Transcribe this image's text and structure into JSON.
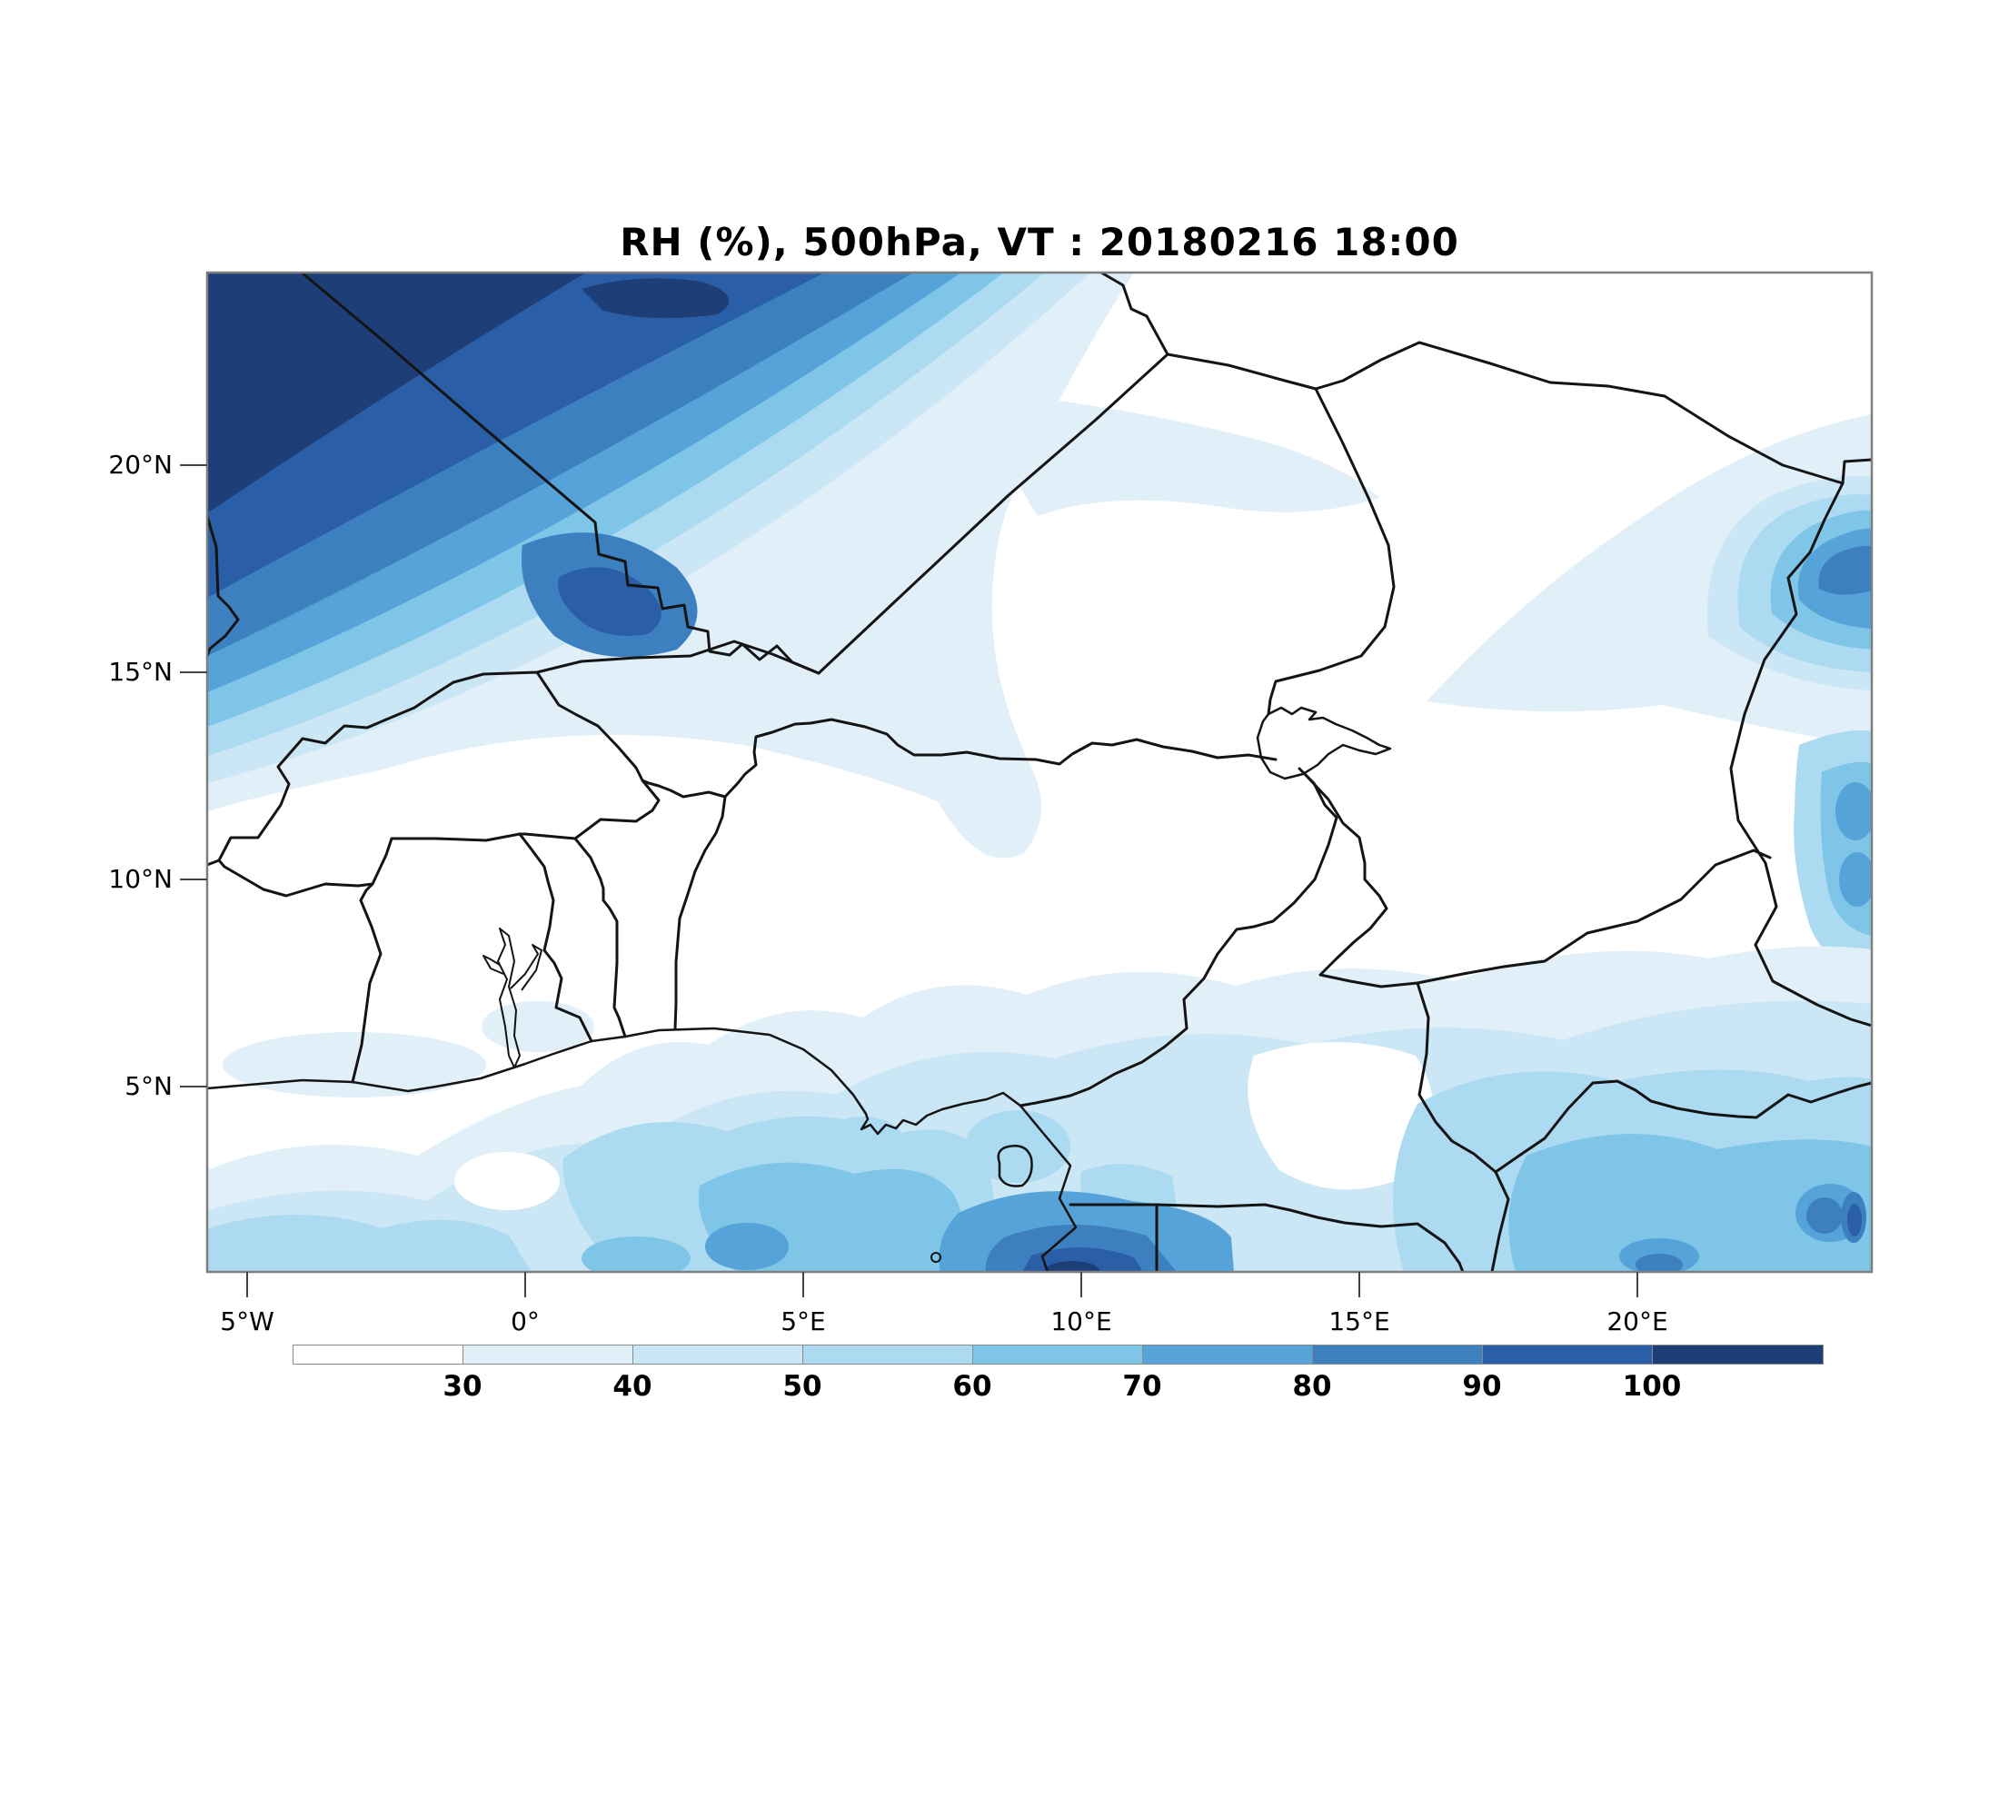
{
  "title": "RH (%), 500hPa, VT : 20180216  18:00",
  "axes": {
    "y_ticks": [
      {
        "label": "20°N",
        "lat": 20
      },
      {
        "label": "15°N",
        "lat": 15
      },
      {
        "label": "10°N",
        "lat": 10
      },
      {
        "label": "5°N",
        "lat": 5
      }
    ],
    "x_ticks": [
      {
        "label": "5°W",
        "lon": -5
      },
      {
        "label": "0°",
        "lon": 0
      },
      {
        "label": "5°E",
        "lon": 5
      },
      {
        "label": "10°E",
        "lon": 10
      },
      {
        "label": "15°E",
        "lon": 15
      },
      {
        "label": "20°E",
        "lon": 20
      }
    ]
  },
  "colorbar": {
    "boundary_labels": [
      "30",
      "40",
      "50",
      "60",
      "70",
      "80",
      "90",
      "100"
    ],
    "segment_colors": [
      "#ffffff",
      "#e1eff8",
      "#cbe6f5",
      "#abdaf1",
      "#7ec5e8",
      "#55a3d8",
      "#3c80c0",
      "#2a5ea6",
      "#1e3e78"
    ]
  },
  "chart_data": {
    "type": "heatmap",
    "subtype": "filled-contour-map",
    "title": "RH (%), 500hPa, VT : 20180216  18:00",
    "variable": "Relative humidity",
    "units": "%",
    "pressure_level": "500 hPa",
    "valid_time": "20180216 18:00",
    "lon_range": [
      -5.7,
      24.2
    ],
    "lat_range": [
      0.55,
      24.65
    ],
    "x_tick_labels": [
      "5°W",
      "0°",
      "5°E",
      "10°E",
      "15°E",
      "20°E"
    ],
    "y_tick_labels": [
      "20°N",
      "15°N",
      "10°N",
      "5°N"
    ],
    "contour_levels": [
      30,
      40,
      50,
      60,
      70,
      80,
      90,
      100
    ],
    "palette": [
      {
        "range": "< 30",
        "color": "#ffffff"
      },
      {
        "range": "30-40",
        "color": "#e1eff8"
      },
      {
        "range": "40-50",
        "color": "#cbe6f5"
      },
      {
        "range": "50-60",
        "color": "#abdaf1"
      },
      {
        "range": "60-70",
        "color": "#7ec5e8"
      },
      {
        "range": "70-80",
        "color": "#55a3d8"
      },
      {
        "range": "80-90",
        "color": "#3c80c0"
      },
      {
        "range": "90-100",
        "color": "#2a5ea6"
      },
      {
        "range": "> 100",
        "color": "#1e3e78"
      }
    ],
    "legend_position": "bottom",
    "grid": false,
    "features": [
      {
        "region": "Northwest corner (northern Mali / Algeria)",
        "approx_lon": -5,
        "approx_lat": 23,
        "rh": "90 to >100, banded gradient decreasing southeastward to <30 by ~15N"
      },
      {
        "region": "Dark tongue on Mali-Algeria border",
        "approx_lon": 1.5,
        "approx_lat": 17.5,
        "rh": "90-100 finger"
      },
      {
        "region": "Pale band across central Niger",
        "approx_lon": 8,
        "approx_lat": 15,
        "rh": "30-40"
      },
      {
        "region": "Northeast Chad near right edge",
        "approx_lon": 23.5,
        "approx_lat": 17.5,
        "rh": "80-90 core in 30-60 halo"
      },
      {
        "region": "Right edge, eastern Chad",
        "approx_lon": 23.8,
        "approx_lat": 11.5,
        "rh": "60-80 patches"
      },
      {
        "region": "Sahel / central belt",
        "approx_lon": 5,
        "approx_lat": 12,
        "rh": "< 30 (dry)"
      },
      {
        "region": "Gulf of Guinea coast band",
        "approx_lon": 3,
        "approx_lat": 3.5,
        "rh": "30-60 widespread"
      },
      {
        "region": "South of Bight of Biafra (Equatorial Guinea / Gabon coast)",
        "approx_lon": 10.5,
        "approx_lat": 1,
        "rh": "80 to >100 maximum at bottom edge"
      },
      {
        "region": "Ocean southwest of Ghana",
        "approx_lon": -1.5,
        "approx_lat": 1.5,
        "rh": "50-70 patch"
      },
      {
        "region": "Southern CAR / Congo basin",
        "approx_lon": 20,
        "approx_lat": 2,
        "rh": "50-90 cores near bottom right"
      }
    ]
  }
}
